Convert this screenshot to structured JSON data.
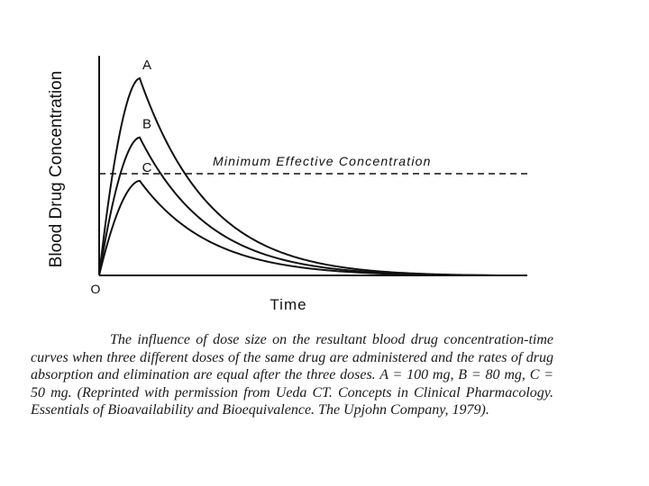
{
  "chart_data": {
    "type": "line",
    "ylabel": "Blood Drug Concentration",
    "xlabel": "Time",
    "origin_label": "O",
    "x_ticks_shown": false,
    "y_ticks_shown": false,
    "grid": false,
    "legend": "curve labels at peaks",
    "series": [
      {
        "name": "A",
        "peak": 100,
        "peak_time": 1.0
      },
      {
        "name": "B",
        "peak": 70,
        "peak_time": 1.0
      },
      {
        "name": "C",
        "peak": 48,
        "peak_time": 1.0
      }
    ],
    "reference_line": {
      "label": "Minimum Effective Concentration",
      "value": 52,
      "style": "dashed"
    }
  },
  "caption": {
    "text": "The influence of dose size on the resultant blood drug concentration-time curves when three different doses of the same drug are administered and the rates of drug absorption and elimination are equal after the three doses. A = 100 mg, B = 80 mg, C = 50 mg. (Reprinted with permission from Ueda CT. Concepts in Clinical Pharmacology. Essentials of Bioavailability and Bioequivalence. The Upjohn Company, 1979)."
  }
}
